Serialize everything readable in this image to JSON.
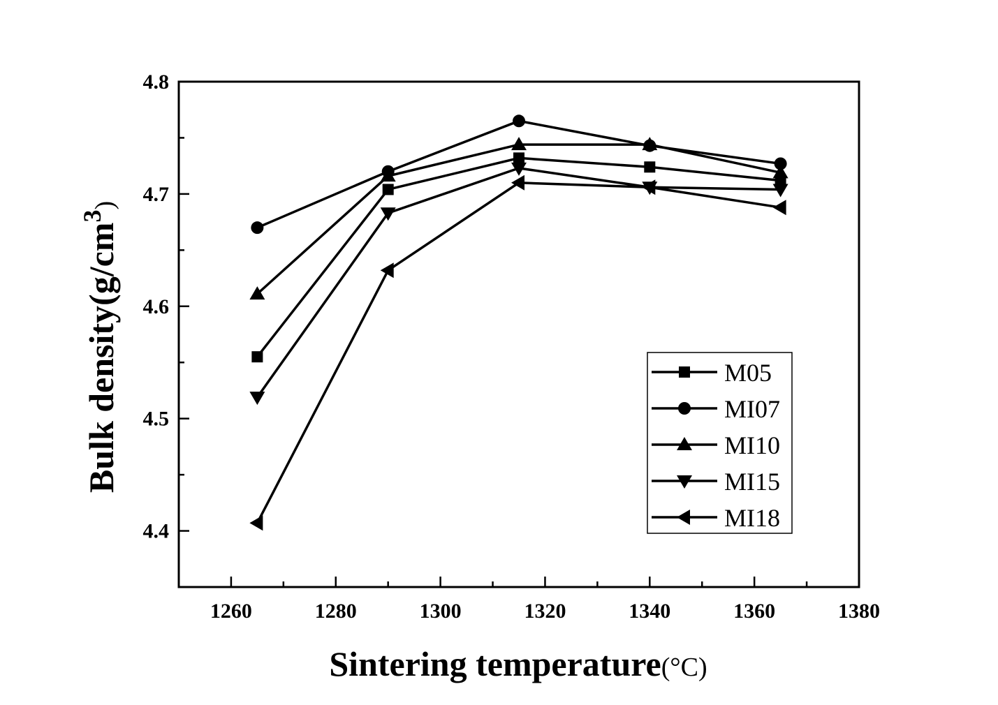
{
  "chart_data": {
    "type": "line",
    "title": "",
    "xlabel": "Sintering temperature(°C)",
    "xlabel_main": "Sintering temperature",
    "xlabel_unit": "(°C)",
    "ylabel_main": "Bulk density",
    "ylabel_unit": "(g/cm",
    "ylabel_sup": "3",
    "ylabel_close": ")",
    "xlim": [
      1250,
      1380
    ],
    "ylim": [
      4.35,
      4.8
    ],
    "xticks": [
      1260,
      1280,
      1300,
      1320,
      1340,
      1360,
      1380
    ],
    "xtick_labels": [
      "1260",
      "1280",
      "1300",
      "1320",
      "1340",
      "1360",
      "1380"
    ],
    "yticks": [
      4.4,
      4.5,
      4.6,
      4.7,
      4.8
    ],
    "ytick_labels": [
      "4.4",
      "4.5",
      "4.6",
      "4.7",
      "4.8"
    ],
    "grid": false,
    "legend_position": "bottom-right",
    "x": [
      1265,
      1290,
      1315,
      1340,
      1365
    ],
    "series": [
      {
        "name": "M05",
        "marker": "square",
        "values": [
          4.555,
          4.704,
          4.732,
          4.724,
          4.712
        ]
      },
      {
        "name": "MI07",
        "marker": "circle",
        "values": [
          4.67,
          4.72,
          4.765,
          4.743,
          4.727
        ]
      },
      {
        "name": "MI10",
        "marker": "triangle-up",
        "values": [
          4.611,
          4.716,
          4.744,
          4.744,
          4.719
        ]
      },
      {
        "name": "MI15",
        "marker": "triangle-down",
        "values": [
          4.519,
          4.683,
          4.723,
          4.706,
          4.704
        ]
      },
      {
        "name": "MI18",
        "marker": "triangle-left",
        "values": [
          4.407,
          4.632,
          4.71,
          4.706,
          4.688
        ]
      }
    ],
    "colors": {
      "line": "#000000",
      "background": "#ffffff"
    }
  }
}
